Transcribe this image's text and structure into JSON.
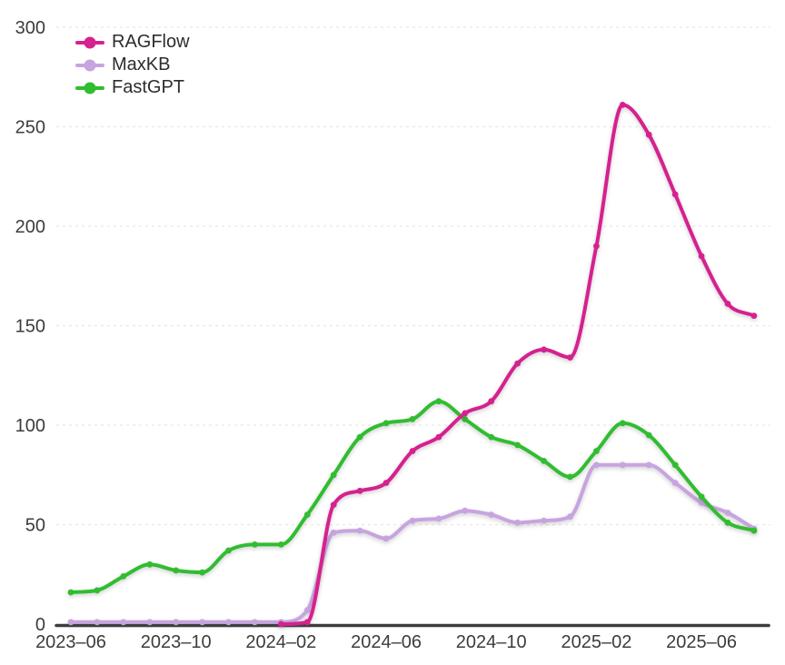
{
  "chart_data": {
    "type": "line",
    "title": "",
    "xlabel": "",
    "ylabel": "",
    "x_labels": [
      "2023-06",
      "2023-07",
      "2023-08",
      "2023-09",
      "2023-10",
      "2023-11",
      "2023-12",
      "2024-01",
      "2024-02",
      "2024-03",
      "2024-04",
      "2024-05",
      "2024-06",
      "2024-07",
      "2024-08",
      "2024-09",
      "2024-10",
      "2024-11",
      "2024-12",
      "2025-01",
      "2025-02",
      "2025-03",
      "2025-04",
      "2025-05",
      "2025-06",
      "2025-07",
      "2025-08"
    ],
    "x_tick_indices": [
      0,
      4,
      8,
      12,
      16,
      20,
      24
    ],
    "x_tick_labels": [
      "2023–06",
      "2023–10",
      "2024–02",
      "2024–06",
      "2024–10",
      "2025–02",
      "2025–06"
    ],
    "y_ticks": [
      0,
      50,
      100,
      150,
      200,
      250,
      300
    ],
    "ylim": [
      0,
      300
    ],
    "grid": "horizontal-dashed",
    "legend_position": "top-left",
    "series": [
      {
        "name": "RAGFlow",
        "color": "#d6218f",
        "values": [
          null,
          null,
          null,
          null,
          null,
          null,
          null,
          null,
          0,
          1,
          60,
          67,
          71,
          87,
          94,
          106,
          112,
          131,
          138,
          134,
          190,
          261,
          246,
          216,
          185,
          161,
          155
        ]
      },
      {
        "name": "MaxKB",
        "color": "#c7a4e0",
        "values": [
          1,
          1,
          1,
          1,
          1,
          1,
          1,
          1,
          1,
          7,
          46,
          47,
          43,
          52,
          53,
          57,
          55,
          51,
          52,
          54,
          80,
          80,
          80,
          71,
          61,
          56,
          48
        ]
      },
      {
        "name": "FastGPT",
        "color": "#30bd30",
        "values": [
          16,
          17,
          24,
          30,
          27,
          26,
          37,
          40,
          40,
          55,
          75,
          94,
          101,
          103,
          112,
          103,
          94,
          90,
          82,
          74,
          87,
          101,
          95,
          80,
          64,
          51,
          47
        ]
      }
    ],
    "draw_order": [
      1,
      2,
      0
    ]
  },
  "style": {
    "axis_color": "#3d3d3d",
    "grid_color": "#e7e7e7",
    "tick_text_color": "#3c3c3c"
  }
}
